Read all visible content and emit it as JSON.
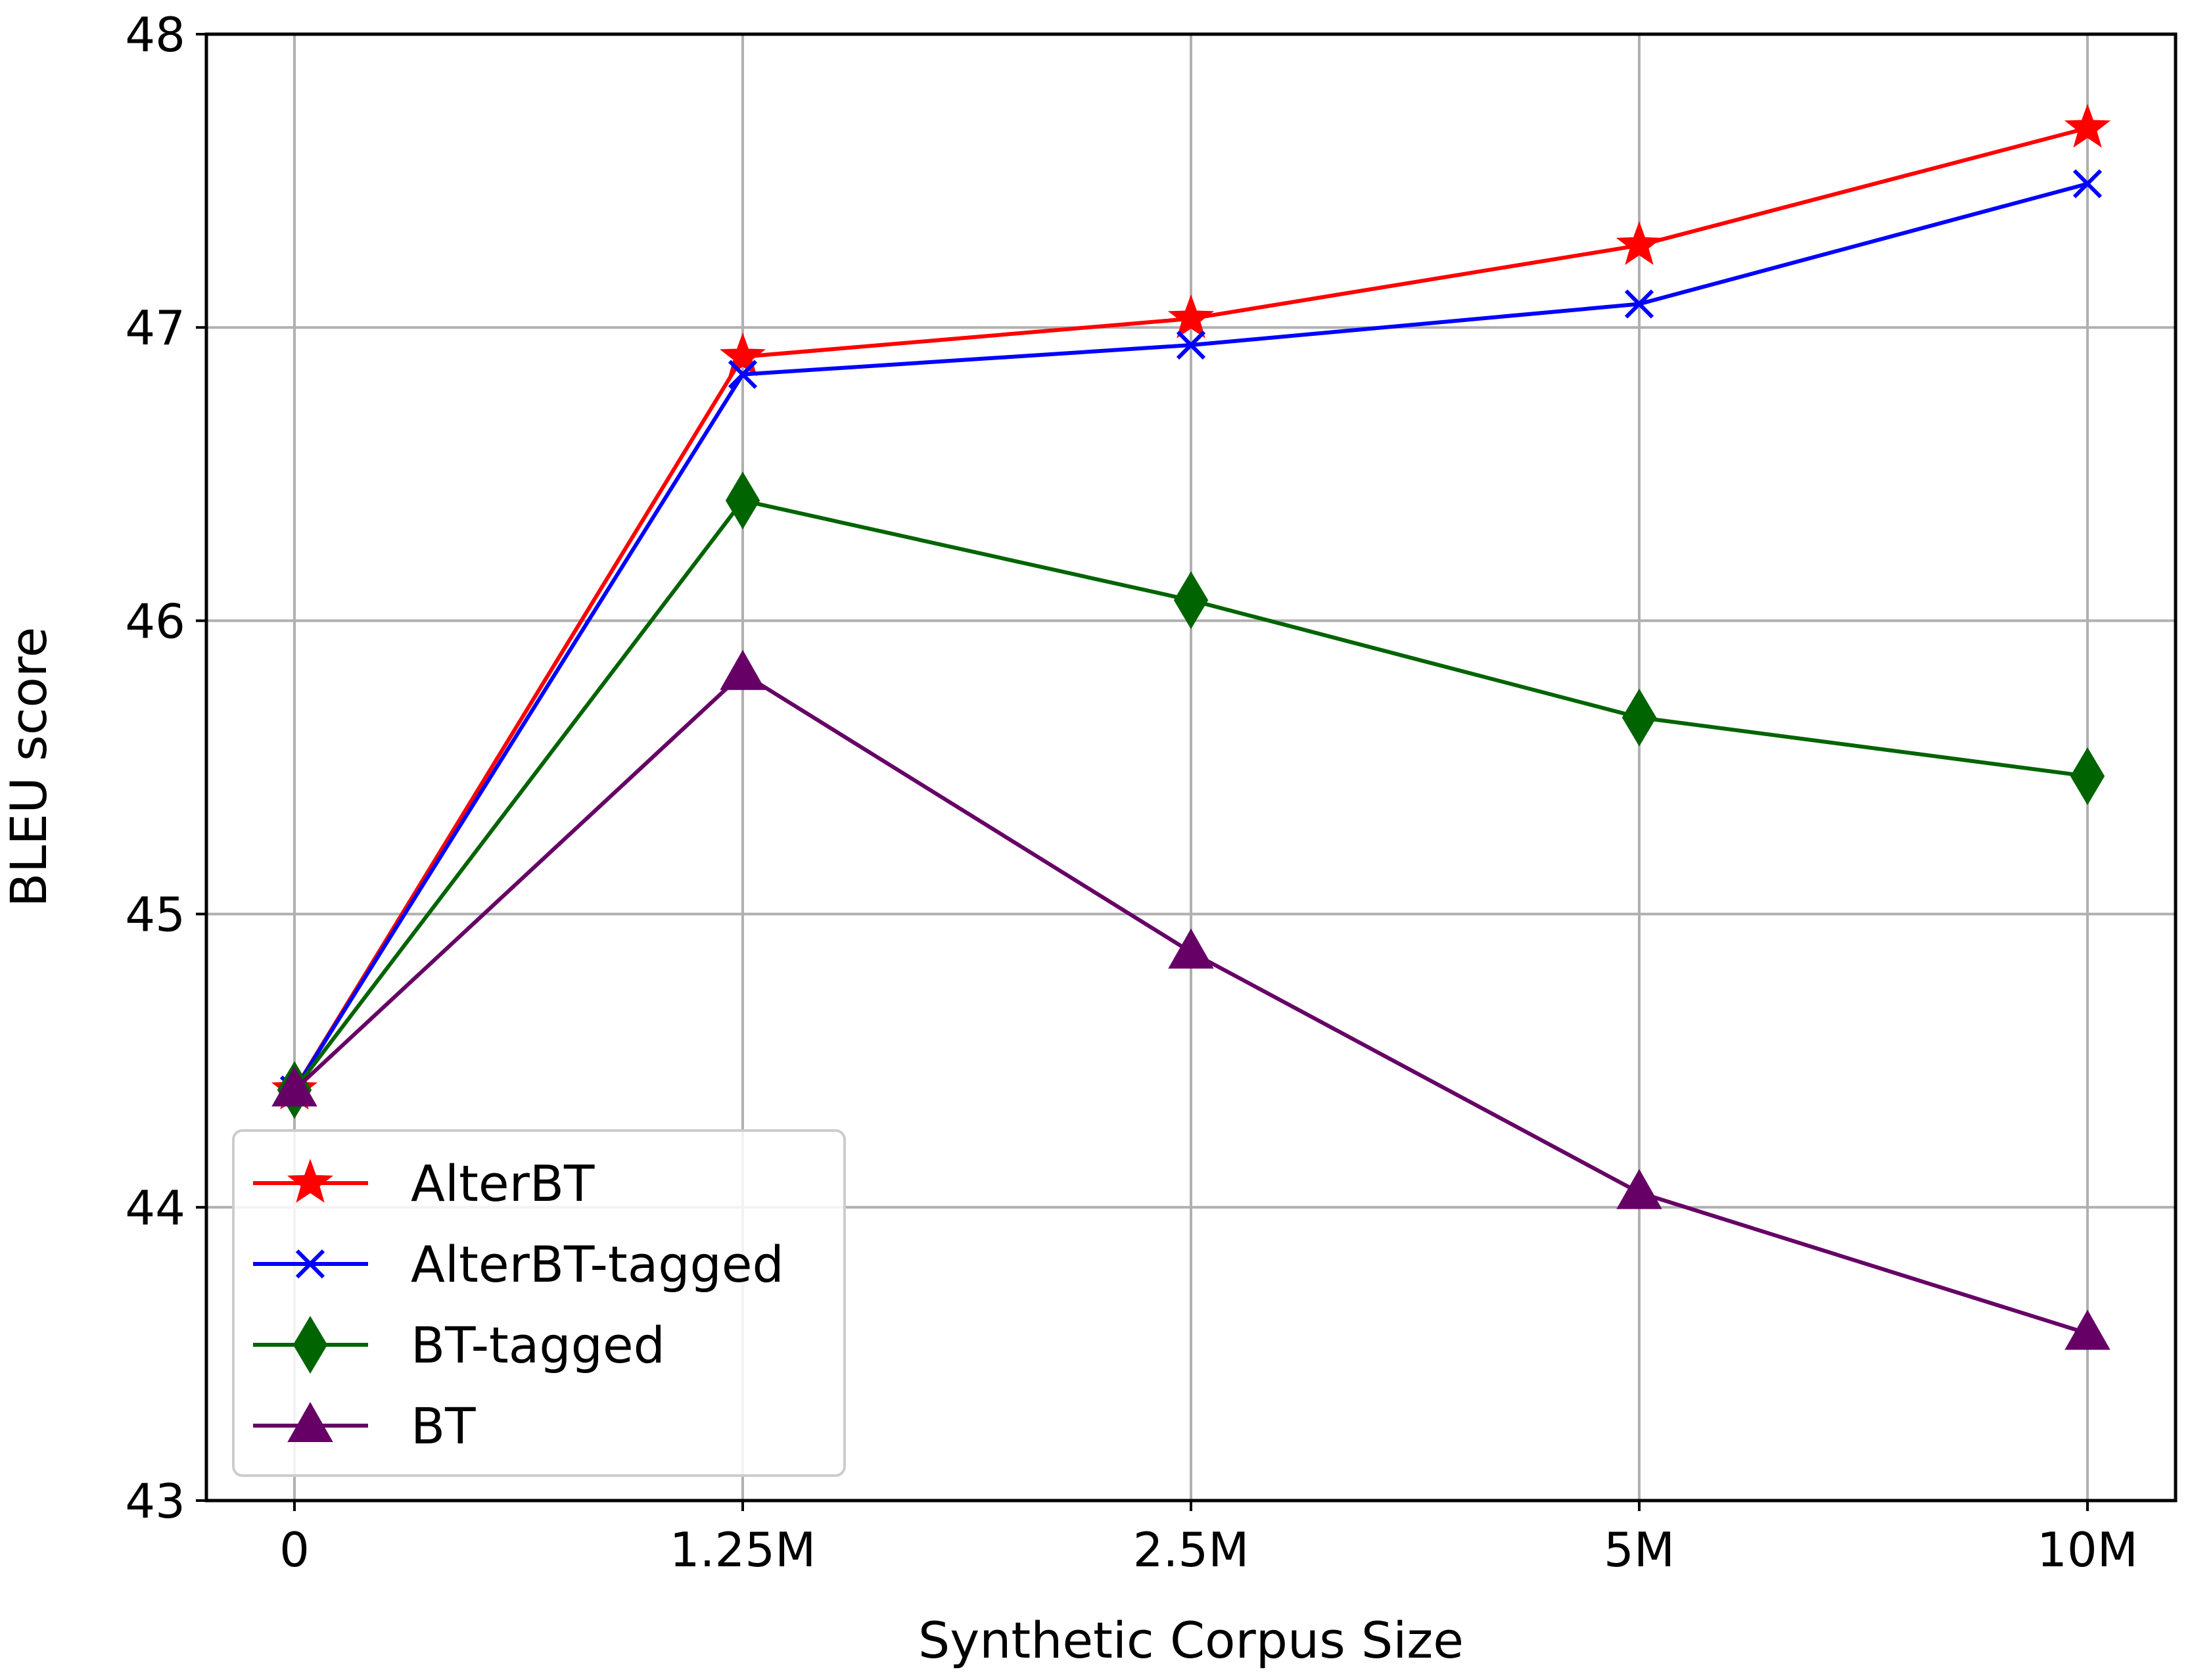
{
  "chart_data": {
    "type": "line",
    "title": "",
    "xlabel": "Synthetic Corpus Size",
    "ylabel": "BLEU score",
    "categories": [
      "0",
      "1.25M",
      "2.5M",
      "5M",
      "10M"
    ],
    "ylim": [
      43,
      48
    ],
    "yticks": [
      "43",
      "44",
      "45",
      "46",
      "47",
      "48"
    ],
    "grid": true,
    "legend_position": "lower-left",
    "series": [
      {
        "name": "AlterBT",
        "color": "#ff0000",
        "marker": "star",
        "values": [
          44.4,
          46.9,
          47.03,
          47.28,
          47.68
        ]
      },
      {
        "name": "AlterBT-tagged",
        "color": "#0000ff",
        "marker": "x",
        "values": [
          44.4,
          46.84,
          46.94,
          47.08,
          47.49
        ]
      },
      {
        "name": "BT-tagged",
        "color": "#006400",
        "marker": "diamond",
        "values": [
          44.4,
          46.41,
          46.07,
          45.67,
          45.47
        ]
      },
      {
        "name": "BT",
        "color": "#660066",
        "marker": "triangle",
        "values": [
          44.4,
          45.82,
          44.87,
          44.05,
          43.57
        ]
      }
    ]
  }
}
